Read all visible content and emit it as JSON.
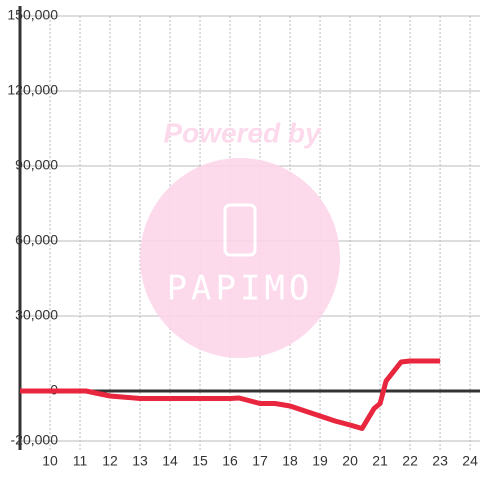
{
  "chart_data": {
    "type": "line",
    "x": [
      9,
      11.2,
      12,
      13,
      14,
      15,
      16,
      16.3,
      17,
      17.5,
      18,
      18.5,
      19,
      19.5,
      20,
      20.4,
      20.8,
      21,
      21.2,
      21.7,
      22,
      23
    ],
    "series": [
      {
        "color": "#e8263e",
        "values": [
          0,
          0,
          -2000,
          -3000,
          -3000,
          -3000,
          -3000,
          -2800,
          -5000,
          -5000,
          -6000,
          -8000,
          -10000,
          -12000,
          -13600,
          -15000,
          -7000,
          -5000,
          4000,
          11600,
          12000,
          12000
        ]
      }
    ],
    "xlim": [
      9,
      24.33
    ],
    "ylim": [
      -20000,
      150000
    ],
    "xticks": [
      10,
      11,
      12,
      13,
      14,
      15,
      16,
      17,
      18,
      19,
      20,
      21,
      22,
      23,
      24
    ],
    "yticks": [
      {
        "value": -20000,
        "label": "-20,000"
      },
      0,
      {
        "value": 30000,
        "label": "30,000"
      },
      {
        "value": 60000,
        "label": "60,000"
      },
      {
        "value": 90000,
        "label": "90,000"
      },
      {
        "value": 120000,
        "label": "120,000"
      },
      {
        "value": 150000,
        "label": "150,000"
      }
    ],
    "grid": true,
    "watermark": {
      "text": "Powered by",
      "logo": "PAPIMO"
    }
  }
}
